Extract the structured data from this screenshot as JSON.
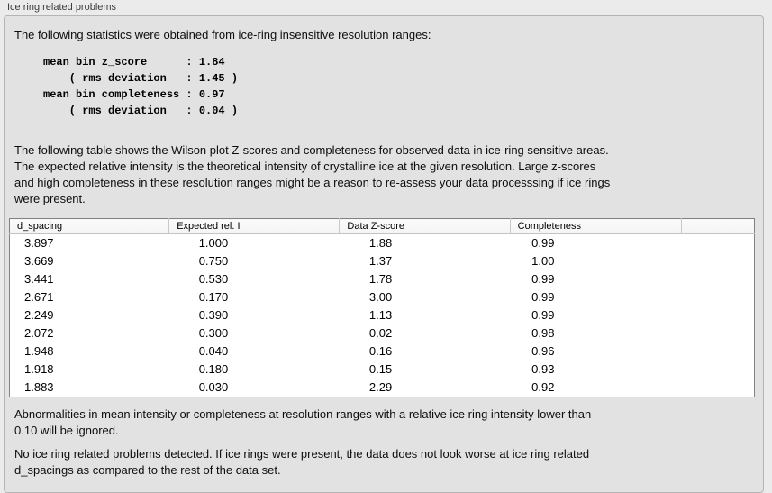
{
  "panel": {
    "title": "Ice ring related problems"
  },
  "intro_text": "The following statistics were obtained from ice-ring insensitive resolution ranges:",
  "statistics": {
    "lines": [
      "mean bin z_score      : 1.84",
      "    ( rms deviation   : 1.45 )",
      "mean bin completeness : 0.97",
      "    ( rms deviation   : 0.04 )"
    ]
  },
  "description_lines": [
    "The following table shows the Wilson plot Z-scores and completeness for observed data in ice-ring sensitive areas.",
    "The expected relative intensity is the theoretical intensity of crystalline ice at the given resolution. Large z-scores",
    "and high completeness in these resolution ranges might be a reason to re-assess your data processsing if ice rings",
    "were present."
  ],
  "table": {
    "columns": [
      "d_spacing",
      "Expected rel. I",
      "Data Z-score",
      "Completeness"
    ],
    "rows": [
      [
        "3.897",
        "1.000",
        "1.88",
        "0.99"
      ],
      [
        "3.669",
        "0.750",
        "1.37",
        "1.00"
      ],
      [
        "3.441",
        "0.530",
        "1.78",
        "0.99"
      ],
      [
        "2.671",
        "0.170",
        "3.00",
        "0.99"
      ],
      [
        "2.249",
        "0.390",
        "1.13",
        "0.99"
      ],
      [
        "2.072",
        "0.300",
        "0.02",
        "0.98"
      ],
      [
        "1.948",
        "0.040",
        "0.16",
        "0.96"
      ],
      [
        "1.918",
        "0.180",
        "0.15",
        "0.93"
      ],
      [
        "1.883",
        "0.030",
        "2.29",
        "0.92"
      ]
    ]
  },
  "ignore_note_lines": [
    "Abnormalities in mean intensity or completeness at resolution ranges with a relative ice ring intensity lower than",
    "0.10 will be ignored."
  ],
  "conclusion_lines": [
    "No ice ring related problems detected. If ice rings were present, the data does not look worse at ice ring related",
    "d_spacings as compared to the rest of the data set."
  ],
  "colors": {
    "window_bg": "#ebebeb",
    "panel_bg": "#e2e2e2",
    "panel_border": "#b4b4b4",
    "table_border": "#828282",
    "header_bg": "#f4f4f4",
    "text": "#000000"
  }
}
